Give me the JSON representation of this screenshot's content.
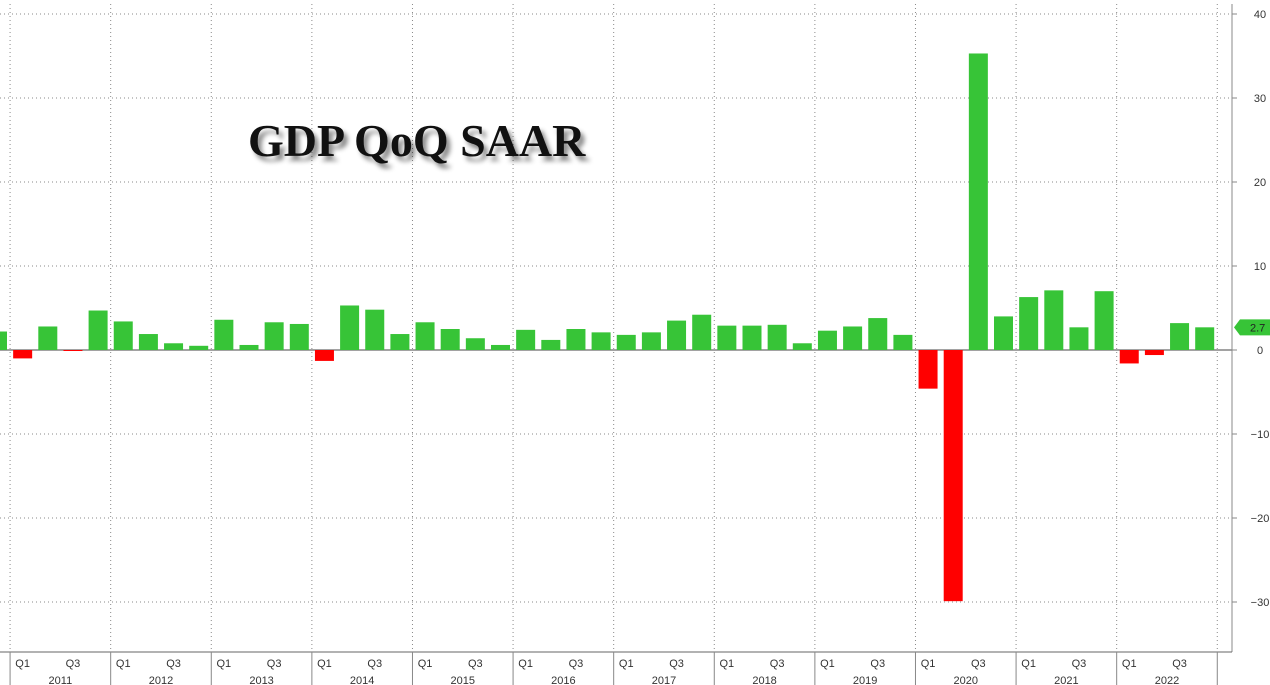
{
  "chart_data": {
    "type": "bar",
    "title": "GDP QoQ SAAR",
    "categories": [
      "2010 Q4",
      "2011 Q1",
      "2011 Q2",
      "2011 Q3",
      "2011 Q4",
      "2012 Q1",
      "2012 Q2",
      "2012 Q3",
      "2012 Q4",
      "2013 Q1",
      "2013 Q2",
      "2013 Q3",
      "2013 Q4",
      "2014 Q1",
      "2014 Q2",
      "2014 Q3",
      "2014 Q4",
      "2015 Q1",
      "2015 Q2",
      "2015 Q3",
      "2015 Q4",
      "2016 Q1",
      "2016 Q2",
      "2016 Q3",
      "2016 Q4",
      "2017 Q1",
      "2017 Q2",
      "2017 Q3",
      "2017 Q4",
      "2018 Q1",
      "2018 Q2",
      "2018 Q3",
      "2018 Q4",
      "2019 Q1",
      "2019 Q2",
      "2019 Q3",
      "2019 Q4",
      "2020 Q1",
      "2020 Q2",
      "2020 Q3",
      "2020 Q4",
      "2021 Q1",
      "2021 Q2",
      "2021 Q3",
      "2021 Q4",
      "2022 Q1",
      "2022 Q2",
      "2022 Q3",
      "2022 Q4"
    ],
    "values": [
      2.2,
      -1.0,
      2.8,
      -0.1,
      4.7,
      3.4,
      1.9,
      0.8,
      0.5,
      3.6,
      0.6,
      3.3,
      3.1,
      -1.3,
      5.3,
      4.8,
      1.9,
      3.3,
      2.5,
      1.4,
      0.6,
      2.4,
      1.2,
      2.5,
      2.1,
      1.8,
      2.1,
      3.5,
      4.2,
      2.9,
      2.9,
      3.0,
      0.8,
      2.3,
      2.8,
      3.8,
      1.8,
      -4.6,
      -29.9,
      35.3,
      4.0,
      6.3,
      7.1,
      2.7,
      7.0,
      -1.6,
      -0.6,
      3.2,
      2.7
    ],
    "positive_color": "#37c437",
    "negative_color": "#ff0000",
    "ylim": [
      -36,
      40
    ],
    "y_ticks": [
      -30,
      -20,
      -10,
      0,
      10,
      20,
      30,
      40
    ],
    "quarter_labels": [
      "Q1",
      "Q3"
    ],
    "year_labels": [
      "2011",
      "2012",
      "2013",
      "2014",
      "2015",
      "2016",
      "2017",
      "2018",
      "2019",
      "2020",
      "2021",
      "2022"
    ],
    "last_value_label": "2.7",
    "last_value_color": "#37c437",
    "grid": true,
    "y_axis_position": "right"
  }
}
